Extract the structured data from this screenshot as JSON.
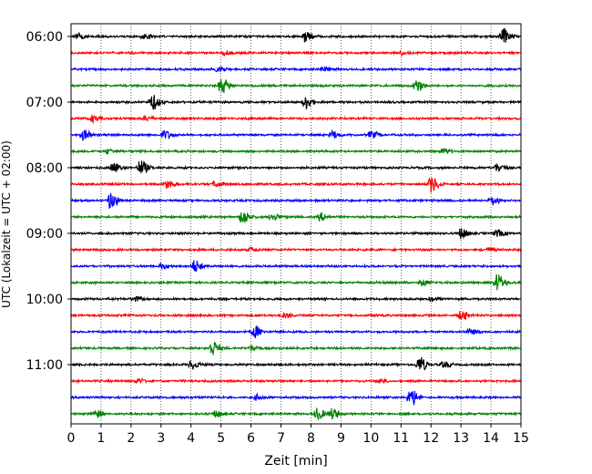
{
  "chart_data": {
    "type": "line",
    "xlabel": "Zeit  [min]",
    "ylabel": "UTC (Lokalzeit = UTC + 02:00)",
    "xlim": [
      0,
      15
    ],
    "x_ticks": [
      "0",
      "1",
      "2",
      "3",
      "4",
      "5",
      "6",
      "7",
      "8",
      "9",
      "10",
      "11",
      "12",
      "13",
      "14",
      "15"
    ],
    "y_ticks": [
      "06:00",
      "07:00",
      "08:00",
      "09:00",
      "10:00",
      "11:00"
    ],
    "grid": "vertical dotted",
    "trace_interval_minutes": 15,
    "colors": [
      "#000000",
      "#ff0000",
      "#0000ff",
      "#008000"
    ],
    "traces": [
      {
        "start": "06:00",
        "color": "#000000",
        "events": [
          [
            0.2,
            0.35
          ],
          [
            7.8,
            0.7
          ],
          [
            14.4,
            0.95
          ],
          [
            2.4,
            0.3
          ]
        ]
      },
      {
        "start": "06:15",
        "color": "#ff0000",
        "events": [
          [
            5.1,
            0.25
          ],
          [
            11.0,
            0.2
          ]
        ]
      },
      {
        "start": "06:30",
        "color": "#0000ff",
        "events": [
          [
            4.9,
            0.3
          ],
          [
            8.4,
            0.25
          ]
        ]
      },
      {
        "start": "06:45",
        "color": "#008000",
        "events": [
          [
            5.0,
            1.0
          ],
          [
            11.5,
            0.75
          ]
        ]
      },
      {
        "start": "07:00",
        "color": "#000000",
        "events": [
          [
            2.7,
            0.95
          ],
          [
            7.8,
            0.8
          ]
        ]
      },
      {
        "start": "07:15",
        "color": "#ff0000",
        "events": [
          [
            0.7,
            0.35
          ],
          [
            2.5,
            0.25
          ]
        ]
      },
      {
        "start": "07:30",
        "color": "#0000ff",
        "events": [
          [
            0.4,
            0.6
          ],
          [
            3.1,
            0.55
          ],
          [
            8.7,
            0.45
          ],
          [
            10.0,
            0.4
          ]
        ]
      },
      {
        "start": "07:45",
        "color": "#008000",
        "events": [
          [
            1.2,
            0.25
          ],
          [
            12.4,
            0.3
          ]
        ]
      },
      {
        "start": "08:00",
        "color": "#000000",
        "events": [
          [
            1.4,
            0.6
          ],
          [
            2.3,
            0.85
          ],
          [
            14.2,
            0.5
          ]
        ]
      },
      {
        "start": "08:15",
        "color": "#ff0000",
        "events": [
          [
            3.2,
            0.5
          ],
          [
            4.8,
            0.35
          ],
          [
            12.0,
            0.95
          ]
        ]
      },
      {
        "start": "08:30",
        "color": "#0000ff",
        "events": [
          [
            1.3,
            1.0
          ],
          [
            14.0,
            0.5
          ]
        ]
      },
      {
        "start": "08:45",
        "color": "#008000",
        "events": [
          [
            5.7,
            0.85
          ],
          [
            6.7,
            0.45
          ],
          [
            8.3,
            0.45
          ]
        ]
      },
      {
        "start": "09:00",
        "color": "#000000",
        "events": [
          [
            13.0,
            0.6
          ],
          [
            14.2,
            0.4
          ]
        ]
      },
      {
        "start": "09:15",
        "color": "#ff0000",
        "events": [
          [
            6.0,
            0.25
          ],
          [
            13.9,
            0.3
          ]
        ]
      },
      {
        "start": "09:30",
        "color": "#0000ff",
        "events": [
          [
            4.1,
            0.7
          ],
          [
            3.0,
            0.3
          ]
        ]
      },
      {
        "start": "09:45",
        "color": "#008000",
        "events": [
          [
            14.2,
            1.0
          ],
          [
            11.7,
            0.35
          ]
        ]
      },
      {
        "start": "10:00",
        "color": "#000000",
        "events": [
          [
            2.1,
            0.3
          ],
          [
            12.0,
            0.25
          ]
        ]
      },
      {
        "start": "10:15",
        "color": "#ff0000",
        "events": [
          [
            13.0,
            0.5
          ],
          [
            7.1,
            0.3
          ]
        ]
      },
      {
        "start": "10:30",
        "color": "#0000ff",
        "events": [
          [
            6.1,
            0.7
          ],
          [
            13.3,
            0.3
          ]
        ]
      },
      {
        "start": "10:45",
        "color": "#008000",
        "events": [
          [
            4.7,
            0.9
          ],
          [
            6.0,
            0.3
          ]
        ]
      },
      {
        "start": "11:00",
        "color": "#000000",
        "events": [
          [
            4.0,
            0.5
          ],
          [
            11.6,
            0.95
          ],
          [
            12.4,
            0.35
          ]
        ]
      },
      {
        "start": "11:15",
        "color": "#ff0000",
        "events": [
          [
            2.2,
            0.25
          ],
          [
            10.3,
            0.25
          ]
        ]
      },
      {
        "start": "11:30",
        "color": "#0000ff",
        "events": [
          [
            6.2,
            0.35
          ],
          [
            11.3,
            1.0
          ]
        ]
      },
      {
        "start": "11:45",
        "color": "#008000",
        "events": [
          [
            0.8,
            0.45
          ],
          [
            4.8,
            0.4
          ],
          [
            8.2,
            0.7
          ],
          [
            8.7,
            0.6
          ]
        ]
      }
    ]
  }
}
